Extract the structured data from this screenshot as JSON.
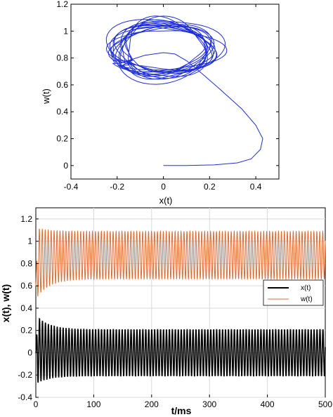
{
  "chart_data": [
    {
      "type": "line",
      "plot": "phase-portrait",
      "xlabel": "x(t)",
      "ylabel": "w(t)",
      "xlim": [
        -0.4,
        0.5
      ],
      "ylim": [
        -0.1,
        1.2
      ],
      "xticks": [
        -0.4,
        -0.2,
        0,
        0.2,
        0.4
      ],
      "yticks": [
        0,
        0.2,
        0.4,
        0.6,
        0.8,
        1,
        1.2
      ],
      "xtick_labels": [
        "-0.4",
        "-0.2",
        "0",
        "0.2",
        "0.4"
      ],
      "ytick_labels": [
        "0",
        "0.2",
        "0.4",
        "0.6",
        "0.8",
        "1",
        "1.2"
      ],
      "grid": false,
      "series": [
        {
          "color": "#1f2fd8",
          "start_segment": [
            [
              0.0,
              0.0
            ],
            [
              0.1,
              0.0
            ],
            [
              0.22,
              0.005
            ],
            [
              0.32,
              0.02
            ],
            [
              0.38,
              0.05
            ],
            [
              0.42,
              0.12
            ],
            [
              0.43,
              0.2
            ],
            [
              0.4,
              0.3
            ],
            [
              0.34,
              0.42
            ],
            [
              0.25,
              0.56
            ],
            [
              0.17,
              0.68
            ],
            [
              0.1,
              0.78
            ],
            [
              0.05,
              0.83
            ],
            [
              0.0,
              0.84
            ],
            [
              -0.08,
              0.82
            ]
          ],
          "orbit": {
            "center": [
              0.0,
              0.865
            ],
            "amplitude_x": [
              0.16,
              0.25
            ],
            "amplitude_w": [
              0.15,
              0.24
            ],
            "turns": 16
          }
        }
      ]
    },
    {
      "type": "line",
      "plot": "time-series",
      "xlabel": "t/ms",
      "ylabel": "x(t), w(t)",
      "xlim": [
        0,
        500
      ],
      "ylim": [
        -0.4,
        1.3
      ],
      "xticks": [
        0,
        100,
        200,
        300,
        400,
        500
      ],
      "yticks": [
        -0.4,
        -0.2,
        0,
        0.2,
        0.4,
        0.6,
        0.8,
        1,
        1.2
      ],
      "xtick_labels": [
        "0",
        "100",
        "200",
        "300",
        "400",
        "500"
      ],
      "ytick_labels": [
        "-0.4",
        "-0.2",
        "0",
        "0.2",
        "0.4",
        "0.6",
        "0.8",
        "1",
        "1.2"
      ],
      "grid": true,
      "legend": "right, middle",
      "period": 5.1,
      "series": [
        {
          "name": "x(t)",
          "color": "#000000",
          "initial": 0.0,
          "oscillation_min": -0.21,
          "oscillation_max": 0.21,
          "transient_min": -0.28,
          "transient_max": 0.34
        },
        {
          "name": "w(t)",
          "color": "#e06a30",
          "initial": 0.6,
          "oscillation_min": 0.66,
          "oscillation_max": 1.09,
          "transient_min": 0.48,
          "transient_max": 1.12
        }
      ]
    }
  ]
}
